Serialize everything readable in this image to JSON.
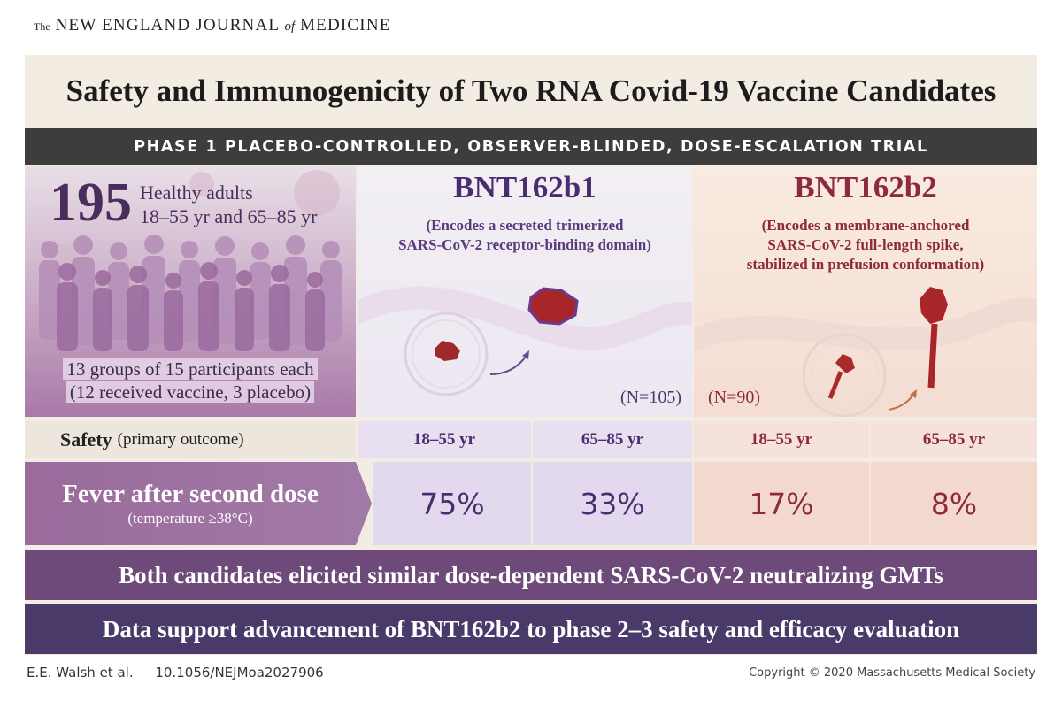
{
  "header": {
    "journal_the": "The",
    "journal_main": "NEW ENGLAND JOURNAL",
    "journal_of": "of",
    "journal_end": "MEDICINE"
  },
  "title": "Safety and Immunogenicity of Two RNA Covid-19 Vaccine Candidates",
  "subtitle": "PHASE 1 PLACEBO-CONTROLLED, OBSERVER-BLINDED, DOSE-ESCALATION TRIAL",
  "participants": {
    "count": "195",
    "desc_line1": "Healthy adults",
    "desc_line2": "18–55 yr and 65–85 yr",
    "groups_line1": "13 groups of 15 participants each",
    "groups_line2": "(12 received vaccine, 3 placebo)"
  },
  "vaccines": [
    {
      "name": "BNT162b1",
      "desc_line1": "(Encodes a secreted trimerized",
      "desc_line2": "SARS-CoV-2 receptor-binding domain)",
      "n": "(N=105)",
      "color": "#4a2d6e"
    },
    {
      "name": "BNT162b2",
      "desc_line1": "(Encodes a membrane-anchored",
      "desc_line2": "SARS-CoV-2 full-length spike,",
      "desc_line3": "stabilized in prefusion conformation)",
      "n": "(N=90)",
      "color": "#8e2a3c"
    }
  ],
  "safety": {
    "label_bold": "Safety",
    "label_rest": "(primary outcome)",
    "age_groups": [
      "18–55 yr",
      "65–85 yr",
      "18–55 yr",
      "65–85 yr"
    ]
  },
  "fever": {
    "label": "Fever after second dose",
    "sublabel": "(temperature ≥38°C)",
    "values": [
      "75%",
      "33%",
      "17%",
      "8%"
    ]
  },
  "conclusions": [
    "Both candidates elicited similar dose-dependent SARS-CoV-2 neutralizing GMTs",
    "Data support advancement of BNT162b2 to phase 2–3 safety and efficacy evaluation"
  ],
  "footer": {
    "authors": "E.E. Walsh et al.",
    "doi": "10.1056/NEJMoa2027906",
    "copyright": "Copyright © 2020 Massachusetts Medical Society"
  },
  "colors": {
    "accent_purple": "#4a2d6e",
    "accent_red": "#8e2a3c",
    "bar_dark": "#3d3d3d",
    "conclusion_1": "#6e4a7a",
    "conclusion_2": "#4a3a6a"
  }
}
